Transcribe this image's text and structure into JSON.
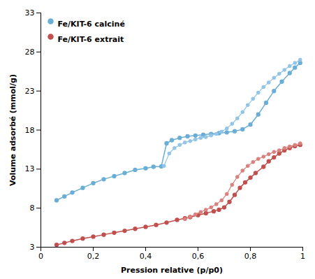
{
  "chart_data": {
    "type": "line",
    "xlabel": "Pression relative (p/p0)",
    "ylabel": "Volume adsorbé (mmol/g)",
    "xlim": [
      0,
      1.0
    ],
    "ylim": [
      3,
      33
    ],
    "xticks": [
      0,
      {
        "value": 0.2,
        "label": "0,2"
      },
      {
        "value": 0.4,
        "label": "0,4"
      },
      {
        "value": 0.6,
        "label": "0,6"
      },
      {
        "value": 0.8,
        "label": "0,8"
      },
      1
    ],
    "yticks": [
      3,
      8,
      13,
      18,
      23,
      28,
      33
    ],
    "grid": false,
    "legend": "upper left",
    "series": [
      {
        "name": "Fe/KIT-6 calciné",
        "color": "#6aaed6",
        "marker": "circle",
        "x": [
          0.06,
          0.09,
          0.12,
          0.16,
          0.2,
          0.24,
          0.28,
          0.32,
          0.36,
          0.4,
          0.43,
          0.46,
          0.48,
          0.5,
          0.53,
          0.56,
          0.59,
          0.62,
          0.65,
          0.68,
          0.71,
          0.74,
          0.77,
          0.8,
          0.83,
          0.86,
          0.89,
          0.92,
          0.95,
          0.97,
          0.99
        ],
        "values": [
          9.0,
          9.5,
          10.0,
          10.6,
          11.2,
          11.7,
          12.1,
          12.5,
          12.9,
          13.1,
          13.3,
          13.35,
          16.3,
          16.7,
          17.0,
          17.2,
          17.3,
          17.4,
          17.5,
          17.6,
          17.7,
          17.85,
          18.1,
          18.7,
          20.0,
          21.5,
          23.0,
          24.2,
          25.3,
          26.0,
          26.6
        ]
      },
      {
        "color": "#92c5e8",
        "marker": "circle",
        "x": [
          0.99,
          0.97,
          0.95,
          0.93,
          0.91,
          0.89,
          0.87,
          0.85,
          0.83,
          0.81,
          0.79,
          0.77,
          0.75,
          0.73,
          0.71,
          0.69,
          0.67,
          0.65,
          0.63,
          0.61,
          0.59,
          0.57,
          0.55,
          0.53,
          0.51,
          0.49,
          0.47
        ],
        "values": [
          27.0,
          26.6,
          26.2,
          25.7,
          25.2,
          24.7,
          24.1,
          23.5,
          22.8,
          22.0,
          21.2,
          20.3,
          19.5,
          18.8,
          18.2,
          17.8,
          17.5,
          17.3,
          17.1,
          17.0,
          16.8,
          16.6,
          16.4,
          16.1,
          15.7,
          15.0,
          13.4
        ]
      },
      {
        "name": "Fe/KIT-6 extrait",
        "color": "#c0504d",
        "marker": "circle",
        "x": [
          0.06,
          0.09,
          0.12,
          0.16,
          0.2,
          0.24,
          0.28,
          0.32,
          0.36,
          0.4,
          0.44,
          0.48,
          0.52,
          0.55,
          0.57,
          0.6,
          0.63,
          0.66,
          0.68,
          0.7,
          0.72,
          0.74,
          0.76,
          0.78,
          0.8,
          0.82,
          0.85,
          0.87,
          0.89,
          0.91,
          0.93,
          0.95,
          0.97,
          0.99
        ],
        "values": [
          3.3,
          3.55,
          3.8,
          4.1,
          4.35,
          4.6,
          4.85,
          5.1,
          5.35,
          5.6,
          5.85,
          6.15,
          6.5,
          6.7,
          6.85,
          7.1,
          7.35,
          7.6,
          7.8,
          8.1,
          8.8,
          9.7,
          10.6,
          11.3,
          11.9,
          12.5,
          13.3,
          14.0,
          14.5,
          15.0,
          15.4,
          15.7,
          15.95,
          16.1
        ]
      },
      {
        "color": "#d9827f",
        "marker": "circle",
        "x": [
          0.99,
          0.97,
          0.95,
          0.93,
          0.91,
          0.89,
          0.87,
          0.85,
          0.83,
          0.81,
          0.79,
          0.77,
          0.75,
          0.73,
          0.71,
          0.69,
          0.67,
          0.65,
          0.63,
          0.61,
          0.59,
          0.57,
          0.55
        ],
        "values": [
          16.3,
          16.1,
          15.9,
          15.7,
          15.4,
          15.2,
          14.9,
          14.6,
          14.3,
          13.9,
          13.4,
          12.8,
          12.0,
          11.0,
          9.8,
          9.0,
          8.5,
          8.1,
          7.8,
          7.5,
          7.2,
          6.9,
          6.6
        ]
      }
    ]
  }
}
